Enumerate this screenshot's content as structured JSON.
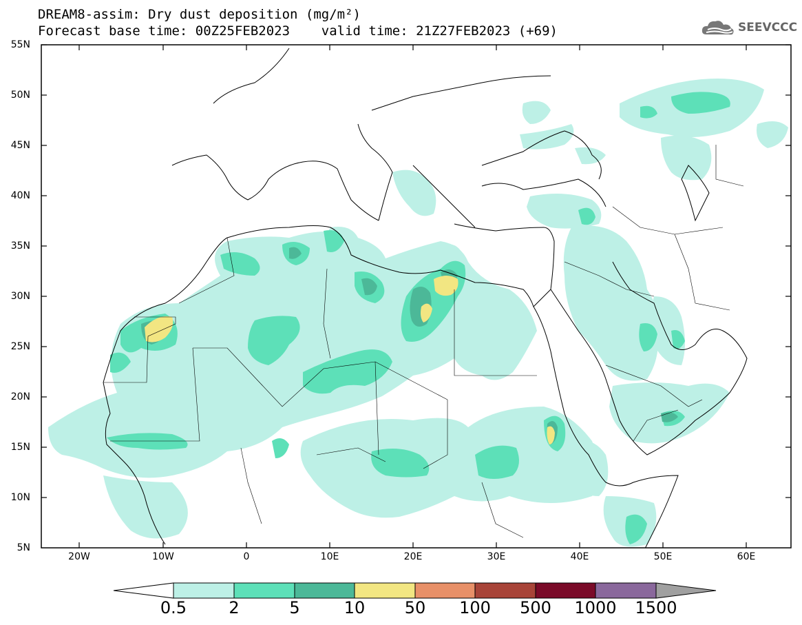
{
  "header": {
    "title_line1": "DREAM8-assim: Dry dust deposition (mg/m²)",
    "title_line2": "Forecast base time: 00Z25FEB2023    valid time: 21Z27FEB2023 (+69)"
  },
  "logo": {
    "text": "SEEVCCC",
    "icon": "cloud-icon"
  },
  "axes": {
    "lat_labels": [
      "55N",
      "50N",
      "45N",
      "40N",
      "35N",
      "30N",
      "25N",
      "20N",
      "15N",
      "10N",
      "5N"
    ],
    "lon_labels": [
      "20W",
      "10W",
      "0",
      "10E",
      "20E",
      "30E",
      "40E",
      "50E",
      "60E"
    ]
  },
  "colorbar": {
    "labels": [
      "0.5",
      "2",
      "5",
      "10",
      "50",
      "100",
      "500",
      "1000",
      "1500"
    ],
    "colors": [
      "#ffffff",
      "#bdf0e6",
      "#5de0b8",
      "#4cb898",
      "#f2e682",
      "#e89068",
      "#a84438",
      "#7a0a28",
      "#8a689c",
      "#a0a0a0"
    ]
  },
  "chart_data": {
    "type": "heatmap",
    "domain": {
      "lon_range": [
        -25,
        65
      ],
      "lat_range": [
        5,
        55
      ]
    },
    "levels": [
      0.5,
      2,
      5,
      10,
      50,
      100,
      500,
      1000,
      1500
    ],
    "units": "mg/m²"
  }
}
